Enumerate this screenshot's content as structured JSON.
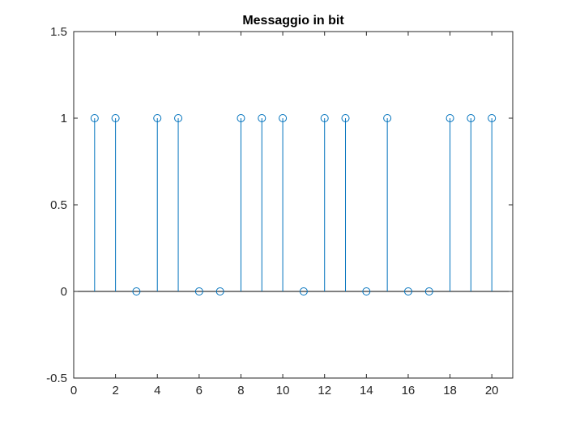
{
  "chart_data": {
    "type": "stem",
    "title": "Messaggio in bit",
    "xlabel": "",
    "ylabel": "",
    "xlim": [
      0,
      21
    ],
    "ylim": [
      -0.5,
      1.5
    ],
    "x_ticks": [
      0,
      2,
      4,
      6,
      8,
      10,
      12,
      14,
      16,
      18,
      20
    ],
    "y_ticks": [
      -0.5,
      0,
      0.5,
      1,
      1.5
    ],
    "x_tick_labels": [
      "0",
      "2",
      "4",
      "6",
      "8",
      "10",
      "12",
      "14",
      "16",
      "18",
      "20"
    ],
    "y_tick_labels": [
      "-0.5",
      "0",
      "0.5",
      "1",
      "1.5"
    ],
    "grid": false,
    "baseline": 0,
    "marker": "circle-open",
    "series": [
      {
        "x": [
          1,
          2,
          3,
          4,
          5,
          6,
          7,
          8,
          9,
          10,
          11,
          12,
          13,
          14,
          15,
          16,
          17,
          18,
          19,
          20
        ],
        "y": [
          1,
          1,
          0,
          1,
          1,
          0,
          0,
          1,
          1,
          1,
          0,
          1,
          1,
          0,
          1,
          0,
          0,
          1,
          1,
          1
        ],
        "color": "#0072BD"
      }
    ]
  }
}
